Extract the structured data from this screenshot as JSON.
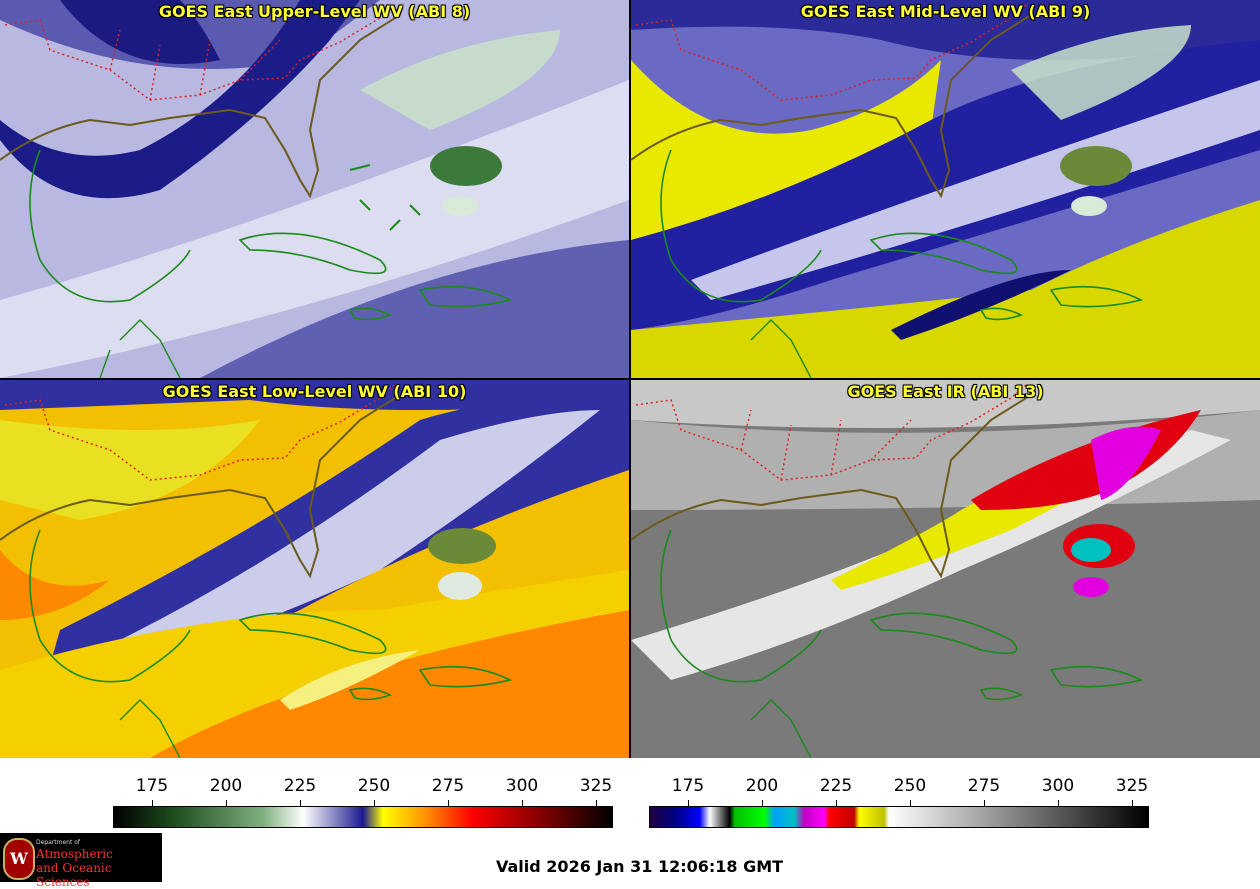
{
  "panels": {
    "upper": {
      "title": "GOES East Upper-Level WV (ABI 8)"
    },
    "mid": {
      "title": "GOES East Mid-Level WV (ABI 9)"
    },
    "low": {
      "title": "GOES East Low-Level WV (ABI 10)"
    },
    "ir": {
      "title": "GOES East IR (ABI 13)"
    }
  },
  "colorbar_wv": {
    "ticks": [
      "175",
      "200",
      "225",
      "250",
      "275",
      "300",
      "325"
    ]
  },
  "colorbar_ir": {
    "ticks": [
      "175",
      "200",
      "225",
      "250",
      "275",
      "300",
      "325"
    ]
  },
  "logo": {
    "dept": "Department of",
    "line1": "Atmospheric",
    "line2": "and Oceanic Sciences",
    "seal": "W"
  },
  "valid_time": "Valid 2026 Jan 31 12:06:18 GMT",
  "colors": {
    "panel_divider": "#000000",
    "title_text": "#ffff33",
    "state_borders": "#e02020",
    "coastlines": "#1a8a1a"
  }
}
